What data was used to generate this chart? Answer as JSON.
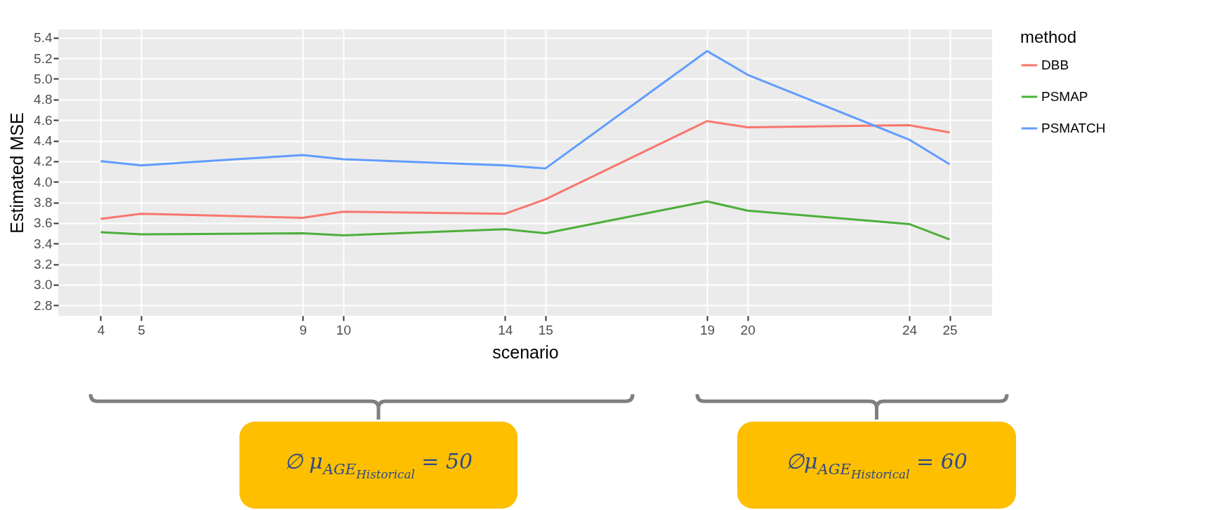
{
  "chart_data": {
    "type": "line",
    "xlabel": "scenario",
    "ylabel": "Estimated MSE",
    "legend_title": "method",
    "legend": "right",
    "grid": true,
    "x": [
      4,
      5,
      9,
      10,
      14,
      15,
      19,
      20,
      24,
      25
    ],
    "xlim": [
      2.95,
      26.05
    ],
    "xticks": [
      4,
      5,
      9,
      10,
      14,
      15,
      19,
      20,
      24,
      25
    ],
    "ylim": [
      2.7,
      5.48
    ],
    "yticks": [
      2.8,
      {
        "value": 3,
        "label": "3.0"
      },
      3.2,
      3.4,
      3.6,
      3.8,
      {
        "value": 4,
        "label": "4.0"
      },
      4.2,
      4.4,
      4.6,
      4.8,
      {
        "value": 5,
        "label": "5.0"
      },
      5.2,
      5.4
    ],
    "series": [
      {
        "name": "DBB",
        "color": "#f8766d",
        "values": [
          3.64,
          3.69,
          3.65,
          3.71,
          3.69,
          3.83,
          4.59,
          4.53,
          4.55,
          4.48
        ]
      },
      {
        "name": "PSMAP",
        "color": "#4daf3a",
        "values": [
          3.51,
          3.49,
          3.5,
          3.48,
          3.54,
          3.5,
          3.81,
          3.72,
          3.59,
          3.44
        ]
      },
      {
        "name": "PSMATCH",
        "color": "#619cff",
        "values": [
          4.2,
          4.16,
          4.26,
          4.22,
          4.16,
          4.13,
          5.27,
          5.04,
          4.41,
          4.17
        ]
      }
    ],
    "annotations": [
      "∅ μ$_{AGE}$$_{Historical}$ = 50",
      "∅μ$_{AGE}$$_{Historical}$ = 60"
    ]
  }
}
